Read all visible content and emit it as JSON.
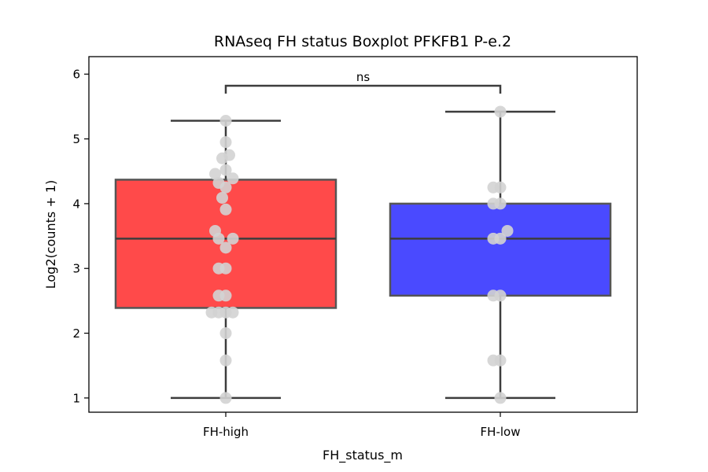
{
  "chart_data": {
    "type": "boxplot",
    "title": "RNAseq FH status Boxplot PFKFB1 P-e.2",
    "xlabel": "FH_status_m",
    "ylabel": "Log2(counts + 1)",
    "categories": [
      "FH-high",
      "FH-low"
    ],
    "yticks": [
      "1",
      "2",
      "3",
      "4",
      "5",
      "6"
    ],
    "ylim": [
      0.78,
      6.27
    ],
    "grid": false,
    "boxes": [
      {
        "category": "FH-high",
        "color": "#ff4a4a",
        "whisker_low": 1.0,
        "q1": 2.39,
        "median": 3.46,
        "q3": 4.37,
        "whisker_high": 5.28
      },
      {
        "category": "FH-low",
        "color": "#4a4aff",
        "whisker_low": 1.0,
        "q1": 2.58,
        "median": 3.46,
        "q3": 4.0,
        "whisker_high": 5.42
      }
    ],
    "points": [
      [
        {
          "v": 5.28,
          "o": 0
        },
        {
          "v": 4.95,
          "o": 0
        },
        {
          "v": 4.75,
          "o": 1
        },
        {
          "v": 4.7,
          "o": -1
        },
        {
          "v": 4.52,
          "o": 0
        },
        {
          "v": 4.46,
          "o": -3
        },
        {
          "v": 4.39,
          "o": 2
        },
        {
          "v": 4.32,
          "o": -2
        },
        {
          "v": 4.25,
          "o": 0
        },
        {
          "v": 4.09,
          "o": -1
        },
        {
          "v": 3.91,
          "o": 0
        },
        {
          "v": 3.58,
          "o": -3
        },
        {
          "v": 3.46,
          "o": -2
        },
        {
          "v": 3.46,
          "o": 2
        },
        {
          "v": 3.32,
          "o": 0
        },
        {
          "v": 3.0,
          "o": -2
        },
        {
          "v": 3.0,
          "o": 0
        },
        {
          "v": 2.58,
          "o": -2
        },
        {
          "v": 2.58,
          "o": 0
        },
        {
          "v": 2.32,
          "o": -4
        },
        {
          "v": 2.32,
          "o": -2
        },
        {
          "v": 2.32,
          "o": 0
        },
        {
          "v": 2.32,
          "o": 2
        },
        {
          "v": 2.0,
          "o": 0
        },
        {
          "v": 1.58,
          "o": 0
        },
        {
          "v": 1.0,
          "o": 0
        }
      ],
      [
        {
          "v": 5.42,
          "o": 0
        },
        {
          "v": 4.25,
          "o": -2
        },
        {
          "v": 4.25,
          "o": 0
        },
        {
          "v": 4.0,
          "o": -2
        },
        {
          "v": 4.0,
          "o": 0
        },
        {
          "v": 3.58,
          "o": 2
        },
        {
          "v": 3.46,
          "o": -2
        },
        {
          "v": 3.46,
          "o": 0
        },
        {
          "v": 2.58,
          "o": -2
        },
        {
          "v": 2.58,
          "o": 0
        },
        {
          "v": 1.58,
          "o": -2
        },
        {
          "v": 1.58,
          "o": 0
        },
        {
          "v": 1.0,
          "o": 0
        }
      ]
    ],
    "point_color": "#d3d3d3",
    "annotation": {
      "text": "ns",
      "between": [
        "FH-high",
        "FH-low"
      ],
      "y": 5.82
    }
  }
}
